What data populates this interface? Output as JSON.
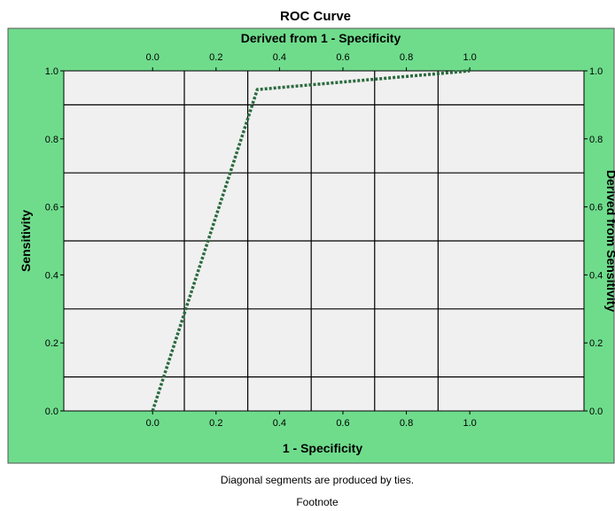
{
  "chart_data": {
    "type": "line",
    "title": "ROC Curve",
    "xlabel": "1 - Specificity",
    "ylabel": "Sensitivity",
    "top_axis_label": "Derived from 1 - Specificity",
    "right_axis_label": "Derived from Sensitivity",
    "xlim": [
      -0.28,
      1.36
    ],
    "ylim": [
      0,
      1
    ],
    "x_ticks": [
      "0.0",
      "0.2",
      "0.4",
      "0.6",
      "0.8",
      "1.0"
    ],
    "y_ticks": [
      "0.0",
      "0.2",
      "0.4",
      "0.6",
      "0.8",
      "1.0"
    ],
    "x_gridlines": [
      0.1,
      0.3,
      0.5,
      0.7,
      0.9
    ],
    "y_gridlines": [
      0.1,
      0.3,
      0.5,
      0.7,
      0.9
    ],
    "grid": true,
    "series": [
      {
        "x": [
          0.0,
          0.33,
          1.0
        ],
        "y": [
          0.0,
          0.945,
          1.0
        ],
        "line_style": "dotted",
        "color": "#2a6a3e"
      }
    ],
    "outer_background": "#6fdc8c",
    "plot_background": "#f0f0f0"
  },
  "footnotes": {
    "note": "Diagonal segments are produced by ties.",
    "footnote": "Footnote"
  }
}
